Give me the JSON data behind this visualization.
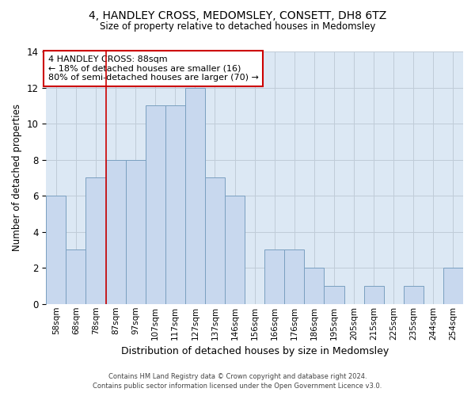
{
  "title": "4, HANDLEY CROSS, MEDOMSLEY, CONSETT, DH8 6TZ",
  "subtitle": "Size of property relative to detached houses in Medomsley",
  "xlabel": "Distribution of detached houses by size in Medomsley",
  "ylabel": "Number of detached properties",
  "bar_color": "#c8d8ee",
  "bar_edge_color": "#7aa0c0",
  "grid_color": "#c0ccd8",
  "background_color": "#dce8f4",
  "categories": [
    "58sqm",
    "68sqm",
    "78sqm",
    "87sqm",
    "97sqm",
    "107sqm",
    "117sqm",
    "127sqm",
    "137sqm",
    "146sqm",
    "156sqm",
    "166sqm",
    "176sqm",
    "186sqm",
    "195sqm",
    "205sqm",
    "215sqm",
    "225sqm",
    "235sqm",
    "244sqm",
    "254sqm"
  ],
  "values": [
    6,
    3,
    7,
    8,
    8,
    11,
    11,
    12,
    7,
    6,
    0,
    3,
    3,
    2,
    1,
    0,
    1,
    0,
    1,
    0,
    2
  ],
  "ylim": [
    0,
    14
  ],
  "yticks": [
    0,
    2,
    4,
    6,
    8,
    10,
    12,
    14
  ],
  "red_line_index": 3,
  "annotation_text": "4 HANDLEY CROSS: 88sqm\n← 18% of detached houses are smaller (16)\n80% of semi-detached houses are larger (70) →",
  "annotation_box_color": "#ffffff",
  "annotation_box_edge": "#cc0000",
  "footer_line1": "Contains HM Land Registry data © Crown copyright and database right 2024.",
  "footer_line2": "Contains public sector information licensed under the Open Government Licence v3.0."
}
